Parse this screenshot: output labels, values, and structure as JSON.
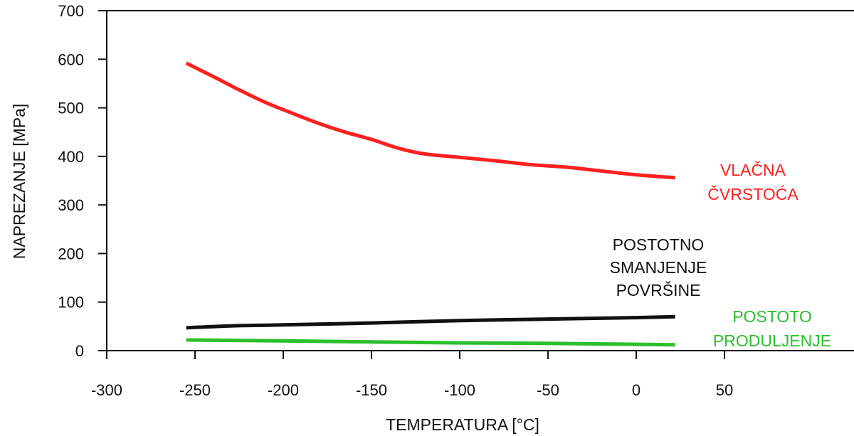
{
  "chart_data": {
    "type": "line",
    "title": "",
    "xlabel": "TEMPERATURA [°C]",
    "ylabel": "NAPREZANJE [MPa]",
    "xlim": [
      -300,
      60
    ],
    "ylim": [
      0,
      700
    ],
    "xticks": [
      -300,
      -250,
      -200,
      -150,
      -100,
      -50,
      0,
      50
    ],
    "yticks": [
      0,
      100,
      200,
      300,
      400,
      500,
      600,
      700
    ],
    "grid": false,
    "legend": "none",
    "series": [
      {
        "color": "#ff2020",
        "label_lines": [
          "VLAČNA",
          "ČVRSTOĆA"
        ],
        "x": [
          -255,
          -240,
          -225,
          -210,
          -195,
          -180,
          -165,
          -150,
          -135,
          -120,
          -100,
          -80,
          -60,
          -40,
          -20,
          0,
          22
        ],
        "y": [
          592,
          565,
          537,
          511,
          489,
          468,
          450,
          435,
          417,
          405,
          398,
          391,
          383,
          378,
          370,
          362,
          356
        ]
      },
      {
        "color": "#111111",
        "label_lines": [
          "POSTOTNO",
          "SMANJENJE",
          "POVRŠINE"
        ],
        "x": [
          -255,
          -230,
          -200,
          -150,
          -100,
          -50,
          0,
          22
        ],
        "y": [
          47,
          51,
          53,
          57,
          62,
          65,
          68,
          70
        ]
      },
      {
        "color": "#2bbf2b",
        "label_lines": [
          "POSTOTO",
          "PRODULJENJE"
        ],
        "x": [
          -255,
          -200,
          -150,
          -100,
          -50,
          0,
          22
        ],
        "y": [
          22,
          20,
          18,
          16,
          15,
          13,
          12
        ]
      }
    ]
  }
}
